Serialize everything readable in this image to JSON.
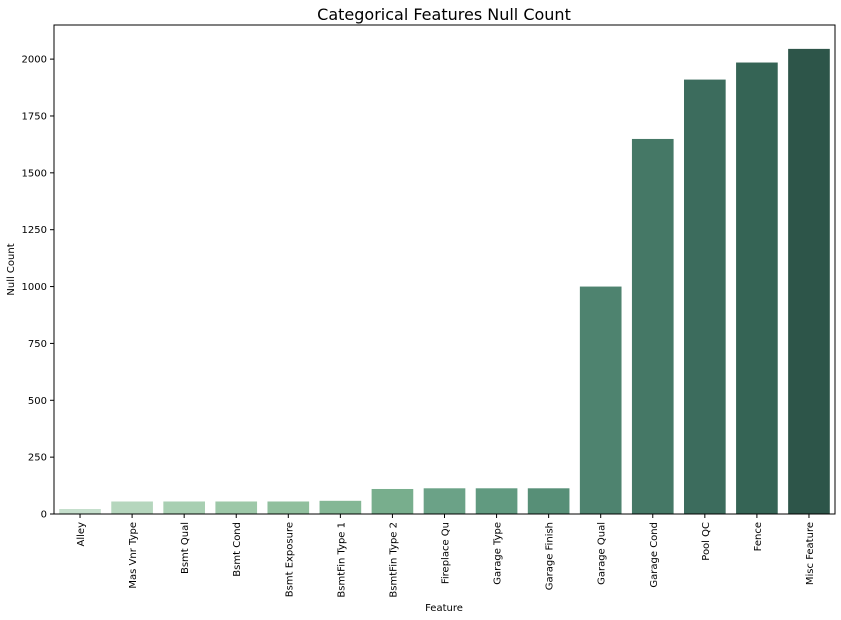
{
  "chart_data": {
    "type": "bar",
    "title": "Categorical Features Null Count",
    "xlabel": "Feature",
    "ylabel": "Null Count",
    "categories": [
      "Alley",
      "Mas Vnr Type",
      "Bsmt Qual",
      "Bsmt Cond",
      "Bsmt Exposure",
      "BsmtFin Type 1",
      "BsmtFin Type 2",
      "Fireplace Qu",
      "Garage Type",
      "Garage Finish",
      "Garage Qual",
      "Garage Cond",
      "Pool QC",
      "Fence",
      "Misc Feature"
    ],
    "values": [
      22,
      55,
      55,
      55,
      55,
      58,
      110,
      113,
      113,
      113,
      1000,
      1649,
      1910,
      1985,
      2045
    ],
    "colors": [
      "#c5dfcc",
      "#b5d6bd",
      "#a8cfb2",
      "#9dc8a8",
      "#90bf9d",
      "#84b795",
      "#78ae8d",
      "#6ba287",
      "#619a80",
      "#578f77",
      "#4e836f",
      "#457866",
      "#3c6c5d",
      "#356455",
      "#2d5549"
    ],
    "ylim": [
      0,
      2150
    ],
    "yticks": [
      0,
      250,
      500,
      750,
      1000,
      1250,
      1500,
      1750,
      2000
    ],
    "grid": false,
    "legend": "none"
  }
}
